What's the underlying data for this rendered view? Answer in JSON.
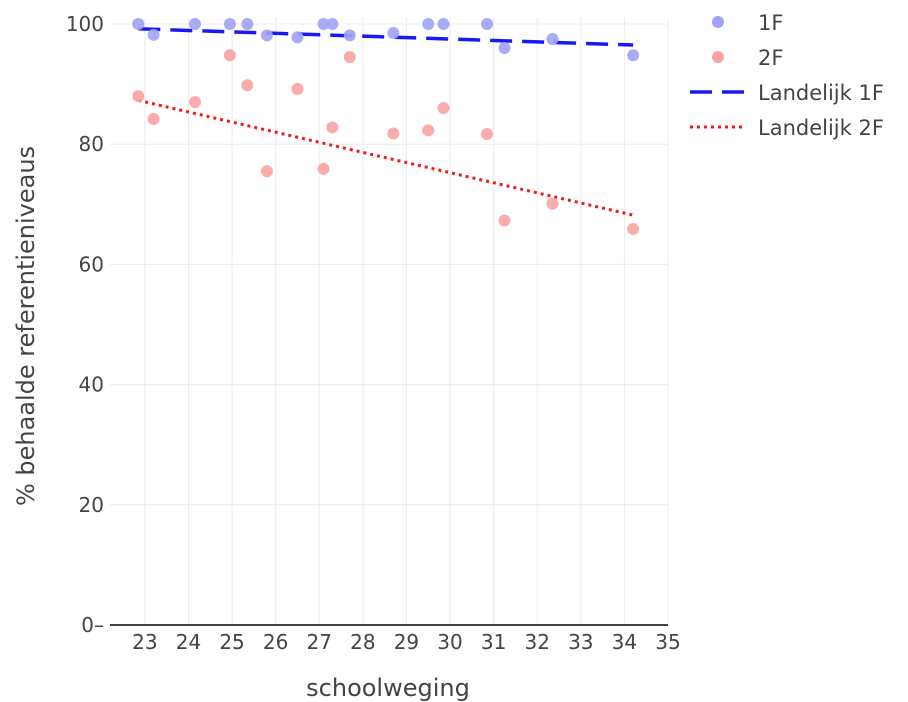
{
  "chart_data": {
    "type": "scatter",
    "xlabel": "schoolweging",
    "ylabel": "% behaalde referentieniveaus",
    "xlim": [
      22.2,
      35
    ],
    "ylim": [
      0,
      100
    ],
    "x_ticks": [
      23,
      24,
      25,
      26,
      27,
      28,
      29,
      30,
      31,
      32,
      33,
      34,
      35
    ],
    "y_ticks": [
      0,
      20,
      40,
      60,
      80,
      100
    ],
    "grid": true,
    "legend_position": "top-right",
    "series": [
      {
        "name": "1F",
        "kind": "scatter",
        "color": "#9fa3f5",
        "points": [
          [
            22.85,
            100
          ],
          [
            23.2,
            98.2
          ],
          [
            24.15,
            100
          ],
          [
            24.95,
            100
          ],
          [
            25.35,
            100
          ],
          [
            25.8,
            98.1
          ],
          [
            26.5,
            97.8
          ],
          [
            27.1,
            100
          ],
          [
            27.3,
            100
          ],
          [
            27.7,
            98.1
          ],
          [
            28.7,
            98.5
          ],
          [
            29.5,
            100
          ],
          [
            29.85,
            100
          ],
          [
            30.85,
            100
          ],
          [
            31.25,
            96
          ],
          [
            32.35,
            97.5
          ],
          [
            34.2,
            94.8
          ]
        ]
      },
      {
        "name": "2F",
        "kind": "scatter",
        "color": "#f9a3a3",
        "points": [
          [
            22.85,
            88
          ],
          [
            23.2,
            84.2
          ],
          [
            24.15,
            87
          ],
          [
            24.95,
            94.8
          ],
          [
            25.35,
            89.8
          ],
          [
            25.8,
            75.5
          ],
          [
            26.5,
            89.2
          ],
          [
            27.1,
            75.9
          ],
          [
            27.3,
            82.8
          ],
          [
            27.7,
            94.5
          ],
          [
            28.7,
            81.8
          ],
          [
            29.5,
            82.3
          ],
          [
            29.85,
            86
          ],
          [
            30.85,
            81.7
          ],
          [
            31.25,
            67.3
          ],
          [
            32.35,
            70.1
          ],
          [
            34.2,
            65.9
          ]
        ]
      },
      {
        "name": "Landelijk 1F",
        "kind": "line",
        "dash": "dashed",
        "color": "#1a1aee",
        "points": [
          [
            22.85,
            99.2
          ],
          [
            34.2,
            96.5
          ]
        ]
      },
      {
        "name": "Landelijk 2F",
        "kind": "line",
        "dash": "dotted",
        "color": "#ee1c1c",
        "points": [
          [
            22.85,
            87.3
          ],
          [
            34.2,
            68.2
          ]
        ]
      }
    ]
  }
}
